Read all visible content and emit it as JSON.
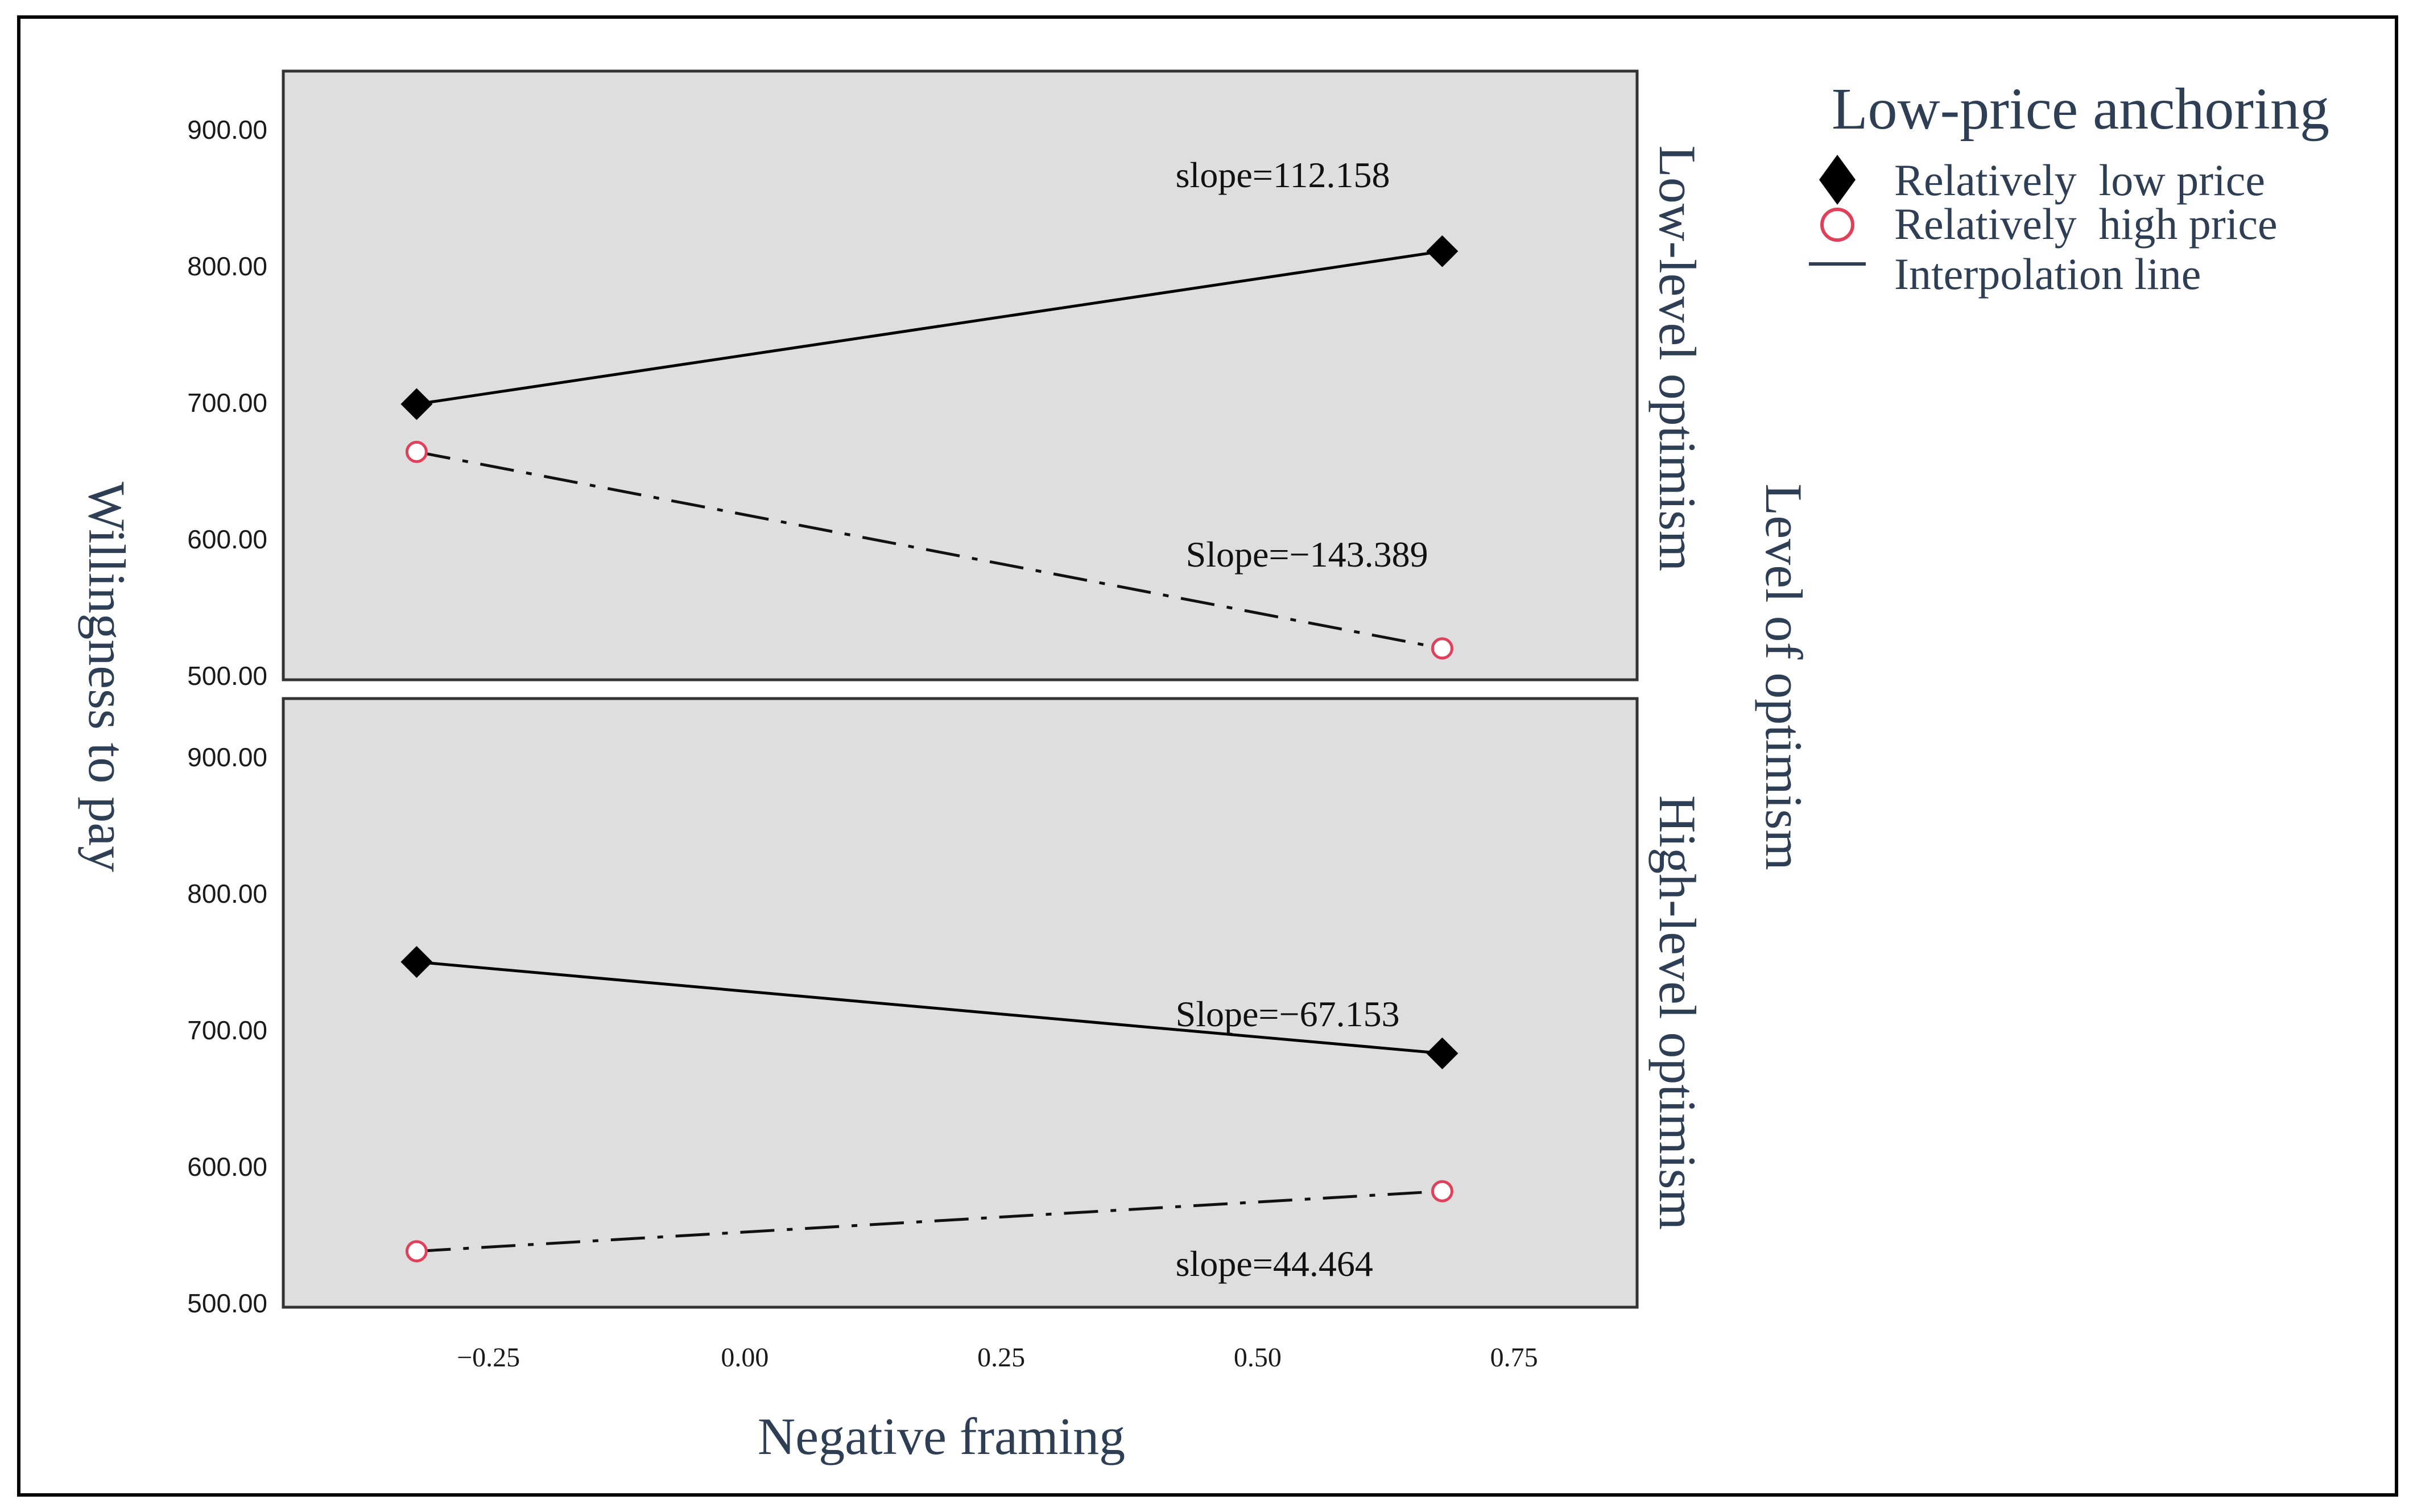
{
  "chart_data": {
    "type": "line",
    "x_label": "Negative framing",
    "y_label": "Willingness to pay",
    "facet_title": "Level of optimism",
    "x_ticks": [
      "−0.25",
      "0.00",
      "0.25",
      "0.50",
      "0.75"
    ],
    "x_tick_values": [
      -0.25,
      0.0,
      0.25,
      0.5,
      0.75
    ],
    "y_ticks": [
      "500.00",
      "600.00",
      "700.00",
      "800.00",
      "900.00"
    ],
    "y_tick_values": [
      500,
      600,
      700,
      800,
      900
    ],
    "xlim": [
      -0.45,
      0.87
    ],
    "ylim": [
      497,
      943
    ],
    "legend": {
      "title": "Low-price anchoring",
      "items": [
        {
          "label": "Relatively  low price",
          "marker": "diamond",
          "color": "#000000"
        },
        {
          "label": "Relatively  high price",
          "marker": "circle",
          "color": "#e0405a"
        },
        {
          "label": "Interpolation line",
          "marker": "line",
          "color": "#2e3f55"
        }
      ]
    },
    "panels": [
      {
        "facet_label": "Low-level optimism",
        "series": [
          {
            "name": "Relatively  low price",
            "x": [
              -0.32,
              0.68
            ],
            "y": [
              699,
              811
            ],
            "line": "solid"
          },
          {
            "name": "Relatively  high price",
            "x": [
              -0.32,
              0.68
            ],
            "y": [
              664,
              520
            ],
            "line": "dashdot"
          }
        ],
        "annotations": [
          {
            "text": "slope=112.158",
            "x": 0.42,
            "y": 858
          },
          {
            "text": "Slope=−143.389",
            "x": 0.43,
            "y": 580
          }
        ]
      },
      {
        "facet_label": "High-level optimism",
        "series": [
          {
            "name": "Relatively  low price",
            "x": [
              -0.32,
              0.68
            ],
            "y": [
              750,
              683
            ],
            "line": "solid"
          },
          {
            "name": "Relatively  high price",
            "x": [
              -0.32,
              0.68
            ],
            "y": [
              538,
              582
            ],
            "line": "dashdot"
          }
        ],
        "annotations": [
          {
            "text": "Slope=−67.153",
            "x": 0.42,
            "y": 703
          },
          {
            "text": "slope=44.464",
            "x": 0.42,
            "y": 520
          }
        ]
      }
    ],
    "colors": {
      "panel_bg": "#dedede",
      "low_price": "#000000",
      "high_price": "#e0405a",
      "text": "#2e3f55"
    }
  }
}
